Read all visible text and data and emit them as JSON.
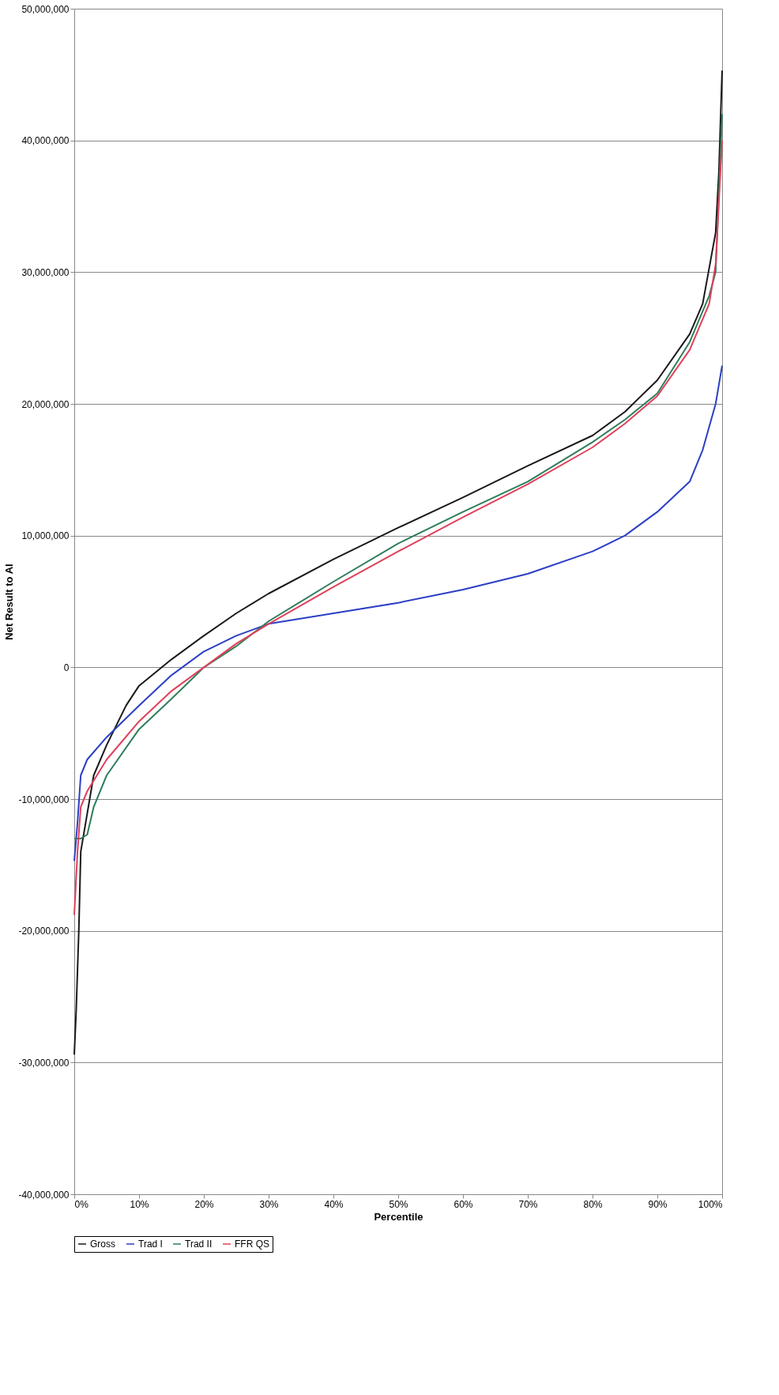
{
  "chart_data": {
    "type": "line",
    "xlabel": "Percentile",
    "ylabel": "Net Result to AI",
    "xlim": [
      0,
      100
    ],
    "ylim": [
      -40000000,
      50000000
    ],
    "xticks": [
      {
        "value": 0,
        "label": "0%"
      },
      {
        "value": 10,
        "label": "10%"
      },
      {
        "value": 20,
        "label": "20%"
      },
      {
        "value": 30,
        "label": "30%"
      },
      {
        "value": 40,
        "label": "40%"
      },
      {
        "value": 50,
        "label": "50%"
      },
      {
        "value": 60,
        "label": "60%"
      },
      {
        "value": 70,
        "label": "70%"
      },
      {
        "value": 80,
        "label": "80%"
      },
      {
        "value": 90,
        "label": "90%"
      },
      {
        "value": 100,
        "label": "100%"
      }
    ],
    "yticks": [
      {
        "value": -40000000,
        "label": "-40,000,000"
      },
      {
        "value": -30000000,
        "label": "-30,000,000"
      },
      {
        "value": -20000000,
        "label": "-20,000,000"
      },
      {
        "value": -10000000,
        "label": "-10,000,000"
      },
      {
        "value": 0,
        "label": "0"
      },
      {
        "value": 10000000,
        "label": "10,000,000"
      },
      {
        "value": 20000000,
        "label": "20,000,000"
      },
      {
        "value": 30000000,
        "label": "30,000,000"
      },
      {
        "value": 40000000,
        "label": "40,000,000"
      },
      {
        "value": 50000000,
        "label": "50,000,000"
      }
    ],
    "grid": "y",
    "legend": "bottom",
    "marker": "none",
    "line_style": "solid",
    "series": [
      {
        "name": "Gross",
        "color": "#1a1a1a",
        "x": [
          0,
          0.3,
          0.7,
          1,
          3,
          5,
          8,
          10,
          15,
          20,
          25,
          30,
          40,
          50,
          60,
          70,
          80,
          85,
          90,
          95,
          97,
          99,
          99.5,
          100
        ],
        "values": [
          -29400000,
          -26000000,
          -20000000,
          -14000000,
          -8200000,
          -5900000,
          -2900000,
          -1400000,
          600000,
          2400000,
          4100000,
          5600000,
          8200000,
          10600000,
          12900000,
          15300000,
          17600000,
          19400000,
          21800000,
          25300000,
          27600000,
          33000000,
          37600000,
          45300000
        ]
      },
      {
        "name": "Trad I",
        "color": "#2b3fc4",
        "x": [
          0,
          0.5,
          1,
          2,
          5,
          10,
          15,
          20,
          25,
          30,
          40,
          50,
          60,
          70,
          80,
          85,
          90,
          95,
          97,
          99,
          100
        ],
        "values": [
          -14700000,
          -11800000,
          -8200000,
          -7000000,
          -5300000,
          -2900000,
          -600000,
          1200000,
          2400000,
          3300000,
          4100000,
          4900000,
          5900000,
          7100000,
          8800000,
          10000000,
          11800000,
          14100000,
          16500000,
          20000000,
          22900000
        ]
      },
      {
        "name": "Trad II",
        "color": "#2e7d5b",
        "x": [
          0,
          1,
          2,
          3,
          5,
          10,
          15,
          20,
          25,
          30,
          40,
          50,
          60,
          70,
          80,
          85,
          90,
          95,
          98,
          99,
          100
        ],
        "values": [
          -13000000,
          -13000000,
          -12700000,
          -10600000,
          -8200000,
          -4700000,
          -2400000,
          0,
          1600000,
          3500000,
          6500000,
          9400000,
          11800000,
          14100000,
          17100000,
          18800000,
          20800000,
          24700000,
          28200000,
          30000000,
          42000000
        ]
      },
      {
        "name": "FFR QS",
        "color": "#e0405a",
        "x": [
          0,
          0.5,
          1,
          2,
          5,
          10,
          15,
          20,
          25,
          30,
          40,
          50,
          60,
          70,
          80,
          85,
          90,
          95,
          98,
          99,
          100
        ],
        "values": [
          -18800000,
          -14000000,
          -10600000,
          -9400000,
          -7000000,
          -4100000,
          -1800000,
          0,
          1800000,
          3300000,
          6100000,
          8800000,
          11400000,
          13900000,
          16700000,
          18500000,
          20600000,
          24100000,
          27600000,
          30600000,
          40000000
        ]
      }
    ]
  }
}
